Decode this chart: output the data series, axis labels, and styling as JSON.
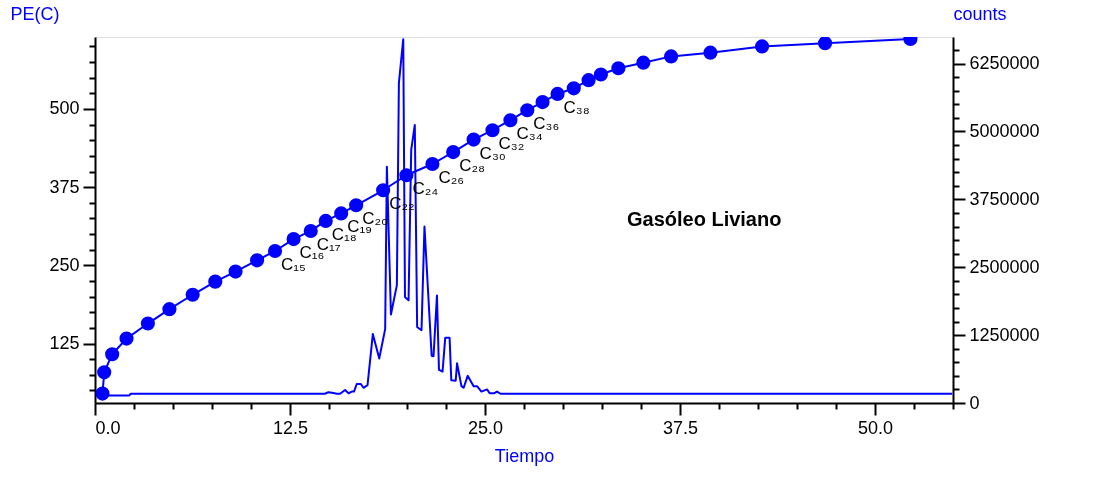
{
  "chart_data": {
    "type": "line",
    "xlabel": "Tiempo",
    "ylabel": "PE(C)",
    "y2label": "counts",
    "xlim": [
      0,
      55
    ],
    "ylim": [
      30,
      615
    ],
    "y2lim": [
      0,
      6740000
    ],
    "xticks": [
      {
        "value": 0,
        "label": "0.0"
      },
      {
        "value": 2.5,
        "label": null
      },
      {
        "value": 5,
        "label": null
      },
      {
        "value": 7.5,
        "label": null
      },
      {
        "value": 10,
        "label": null
      },
      12.5,
      {
        "value": 15,
        "label": null
      },
      {
        "value": 17.5,
        "label": null
      },
      {
        "value": 20,
        "label": null
      },
      {
        "value": 22.5,
        "label": null
      },
      {
        "value": 25,
        "label": "25.0"
      },
      {
        "value": 27.5,
        "label": null
      },
      {
        "value": 30,
        "label": null
      },
      {
        "value": 32.5,
        "label": null
      },
      {
        "value": 35,
        "label": null
      },
      37.5,
      {
        "value": 40,
        "label": null
      },
      {
        "value": 42.5,
        "label": null
      },
      {
        "value": 45,
        "label": null
      },
      {
        "value": 47.5,
        "label": null
      },
      {
        "value": 50,
        "label": "50.0"
      },
      {
        "value": 52.5,
        "label": null
      },
      {
        "value": 55,
        "label": null
      }
    ],
    "yticks": [
      {
        "value": 50,
        "label": null
      },
      {
        "value": 75,
        "label": null
      },
      {
        "value": 100,
        "label": null
      },
      125,
      {
        "value": 150,
        "label": null
      },
      {
        "value": 175,
        "label": null
      },
      {
        "value": 200,
        "label": null
      },
      {
        "value": 225,
        "label": null
      },
      250,
      {
        "value": 275,
        "label": null
      },
      {
        "value": 300,
        "label": null
      },
      {
        "value": 325,
        "label": null
      },
      {
        "value": 350,
        "label": null
      },
      375,
      {
        "value": 400,
        "label": null
      },
      {
        "value": 425,
        "label": null
      },
      {
        "value": 450,
        "label": null
      },
      {
        "value": 475,
        "label": null
      },
      500,
      {
        "value": 525,
        "label": null
      },
      {
        "value": 550,
        "label": null
      },
      {
        "value": 575,
        "label": null
      },
      {
        "value": 600,
        "label": null
      }
    ],
    "y2ticks": [
      0,
      {
        "value": 250000,
        "label": null
      },
      {
        "value": 500000,
        "label": null
      },
      {
        "value": 750000,
        "label": null
      },
      {
        "value": 1000000,
        "label": null
      },
      1250000,
      {
        "value": 1500000,
        "label": null
      },
      {
        "value": 1750000,
        "label": null
      },
      {
        "value": 2000000,
        "label": null
      },
      {
        "value": 2250000,
        "label": null
      },
      2500000,
      {
        "value": 2750000,
        "label": null
      },
      {
        "value": 3000000,
        "label": null
      },
      {
        "value": 3250000,
        "label": null
      },
      {
        "value": 3500000,
        "label": null
      },
      3750000,
      {
        "value": 4000000,
        "label": null
      },
      {
        "value": 4250000,
        "label": null
      },
      {
        "value": 4500000,
        "label": null
      },
      {
        "value": 4750000,
        "label": null
      },
      5000000,
      {
        "value": 5250000,
        "label": null
      },
      {
        "value": 5500000,
        "label": null
      },
      {
        "value": 5750000,
        "label": null
      },
      {
        "value": 6000000,
        "label": null
      },
      6250000,
      {
        "value": 6500000,
        "label": null
      }
    ],
    "series": [
      {
        "marker": "circle",
        "color": "#0000ff",
        "x": [
          0.48,
          0.59,
          1.1,
          2.02,
          3.39,
          4.77,
          6.26,
          7.71,
          9.01,
          10.39,
          11.54,
          12.73,
          13.83,
          14.79,
          15.78,
          16.74,
          18.47,
          19.96,
          21.63,
          22.96,
          24.27,
          25.48,
          26.63,
          27.71,
          28.69,
          29.65,
          30.69,
          31.64,
          32.43,
          33.55,
          35.15,
          36.93,
          39.45,
          42.76,
          46.8,
          52.27
        ],
        "values": [
          45,
          79,
          108,
          133,
          157,
          180,
          203,
          224,
          240,
          258,
          273,
          292,
          305,
          321,
          333,
          346,
          370,
          394,
          412,
          431,
          451,
          466,
          482,
          498,
          511,
          524,
          533,
          546,
          555,
          565,
          574,
          584,
          590,
          600,
          605,
          612
        ]
      },
      {
        "axis": "y2",
        "color": "#0000ff",
        "x": [
          0.25,
          2.2,
          2.3,
          14.74,
          14.96,
          15.2,
          15.5,
          15.71,
          16.03,
          16.25,
          16.47,
          16.6,
          16.78,
          17.04,
          17.21,
          17.47,
          17.81,
          18.22,
          18.6,
          18.71,
          18.97,
          19.35,
          19.48,
          19.76,
          19.87,
          20.1,
          20.27,
          20.5,
          20.65,
          20.93,
          21.12,
          21.58,
          21.7,
          21.92,
          22.05,
          22.28,
          22.45,
          22.73,
          22.84,
          23.12,
          23.21,
          23.49,
          23.63,
          23.89,
          24.27,
          24.49,
          24.77,
          25.13,
          25.3,
          25.6,
          25.77,
          25.99,
          54.95
        ],
        "values": [
          140000,
          140000,
          170000,
          170000,
          200000,
          190000,
          170000,
          170000,
          240000,
          180000,
          210000,
          210000,
          350000,
          350000,
          280000,
          330000,
          1270000,
          820000,
          1360000,
          4350000,
          1630000,
          2170000,
          5890000,
          6700000,
          1950000,
          1890000,
          4660000,
          5120000,
          1400000,
          1340000,
          3250000,
          870000,
          860000,
          1980000,
          610000,
          580000,
          1200000,
          1200000,
          420000,
          410000,
          730000,
          310000,
          280000,
          500000,
          310000,
          310000,
          210000,
          250000,
          180000,
          180000,
          210000,
          170000,
          170000
        ]
      }
    ],
    "annotations": [
      {
        "text": "C₁₅",
        "x": 11.54,
        "y": 273
      },
      {
        "text": "C₁₆",
        "x": 12.73,
        "y": 292
      },
      {
        "text": "C₁₇",
        "x": 13.83,
        "y": 305
      },
      {
        "text": "C₁₈",
        "x": 14.79,
        "y": 321
      },
      {
        "text": "C₁₉",
        "x": 15.78,
        "y": 333
      },
      {
        "text": "C₂₀",
        "x": 16.74,
        "y": 346
      },
      {
        "text": "C₂₂",
        "x": 18.47,
        "y": 370
      },
      {
        "text": "C₂₄",
        "x": 19.96,
        "y": 394
      },
      {
        "text": "C₂₆",
        "x": 21.63,
        "y": 412
      },
      {
        "text": "C₂₈",
        "x": 22.96,
        "y": 431
      },
      {
        "text": "C₃₀",
        "x": 24.27,
        "y": 451
      },
      {
        "text": "C₃₂",
        "x": 25.48,
        "y": 466
      },
      {
        "text": "C₃₄",
        "x": 26.63,
        "y": 482
      },
      {
        "text": "C₃₆",
        "x": 27.71,
        "y": 498
      },
      {
        "text": "C₃₈",
        "x": 29.65,
        "y": 524
      },
      "Gasóleo Liviano"
    ]
  }
}
